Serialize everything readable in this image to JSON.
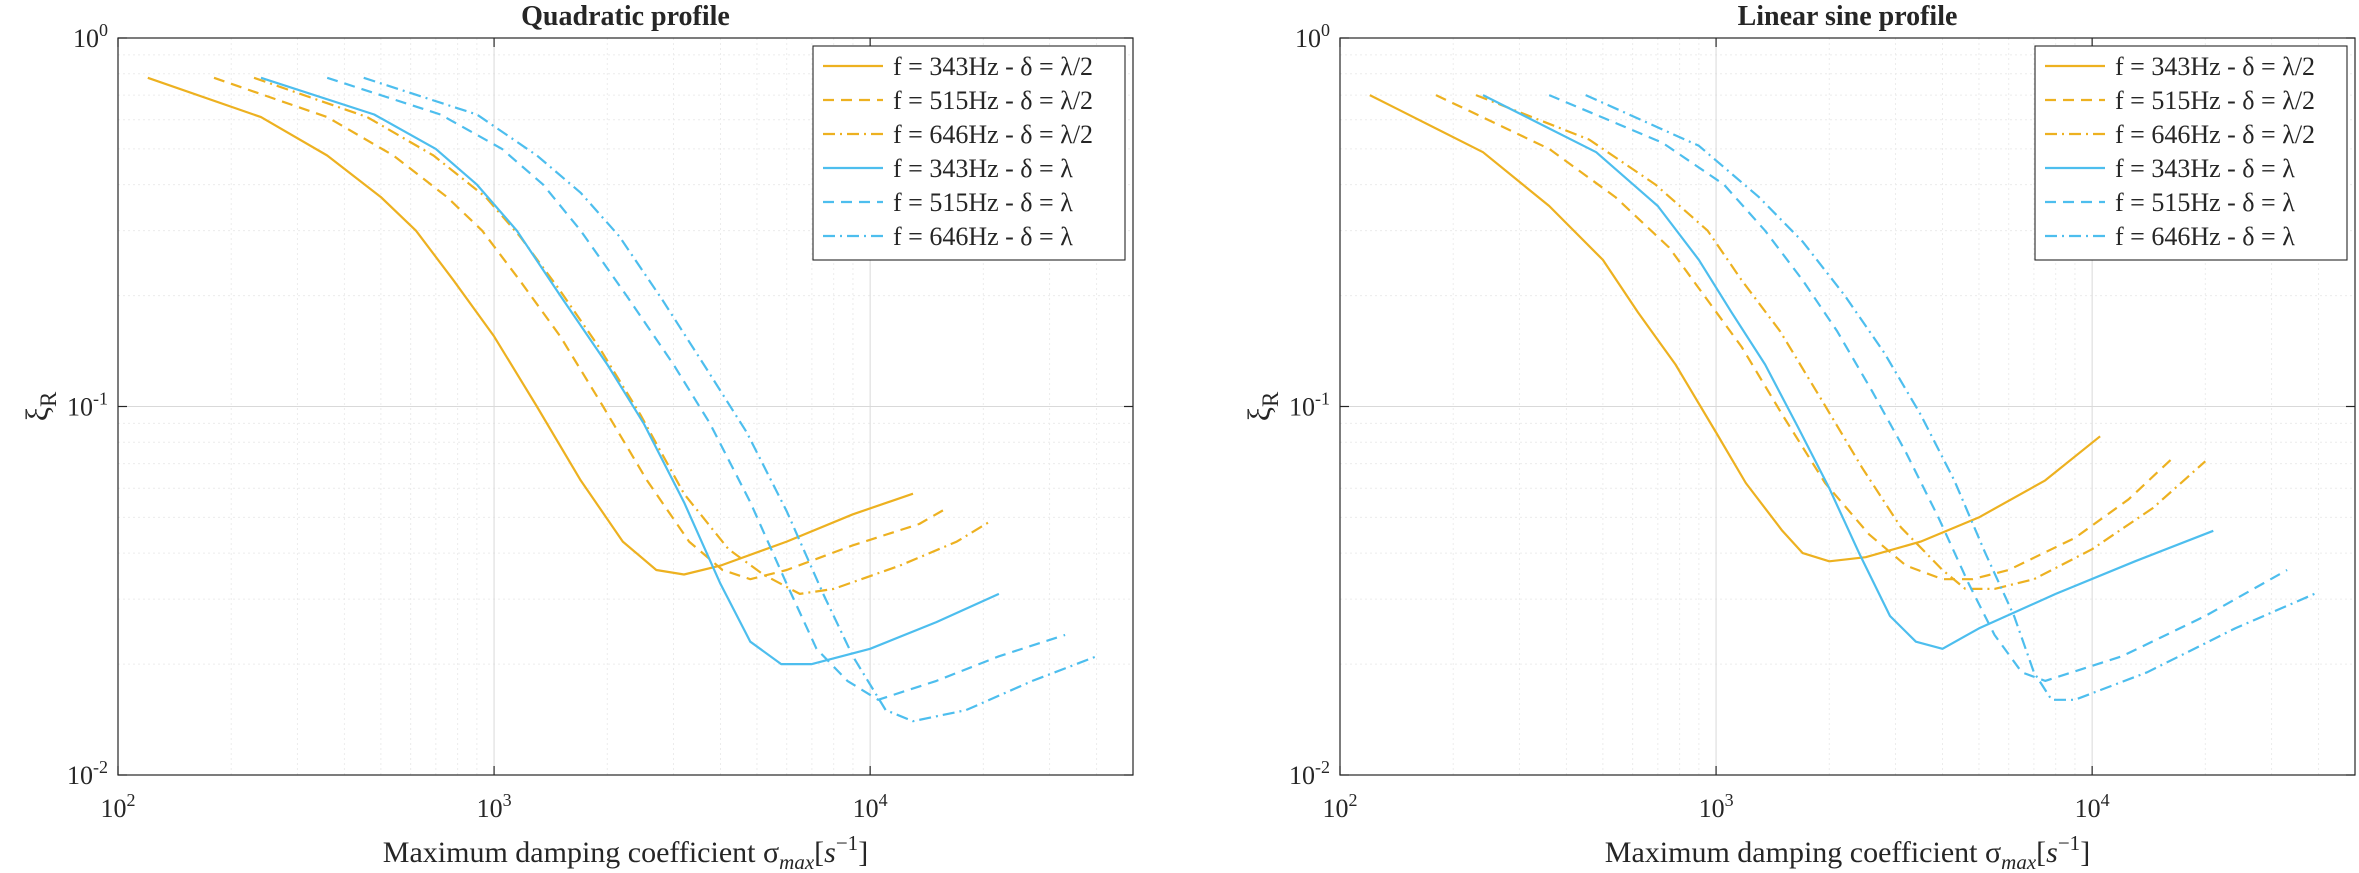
{
  "colors": {
    "yellow": "#EDB120",
    "blue": "#4DBEEE",
    "grid": "#d9d9d9",
    "axis": "#262626"
  },
  "chart_data": [
    {
      "type": "line",
      "title": "Quadratic profile",
      "xlabel": "Maximum damping coefficient σ",
      "xlabel_sub": "max",
      "xlabel_unit_open": "[",
      "xlabel_unit_base": "s",
      "xlabel_unit_exp": "−1",
      "xlabel_unit_close": "]",
      "ylabel": "ξ",
      "ylabel_sub": "R",
      "xscale": "log",
      "yscale": "log",
      "xlim": [
        100,
        50000
      ],
      "ylim": [
        0.01,
        1
      ],
      "grid": true,
      "minor_grid": true,
      "legend_position": "top-right",
      "x_ticks": [
        {
          "value": 100,
          "base": "10",
          "exp": "2"
        },
        {
          "value": 1000,
          "base": "10",
          "exp": "3"
        },
        {
          "value": 10000,
          "base": "10",
          "exp": "4"
        }
      ],
      "y_ticks": [
        {
          "value": 0.01,
          "base": "10",
          "exp": "-2"
        },
        {
          "value": 0.1,
          "base": "10",
          "exp": "-1"
        },
        {
          "value": 1,
          "base": "10",
          "exp": "0"
        }
      ],
      "series": [
        {
          "name": "f = 343Hz - δ = λ/2",
          "color": "yellow",
          "dash": "solid",
          "points": [
            [
              120,
              0.78
            ],
            [
              240,
              0.61
            ],
            [
              360,
              0.48
            ],
            [
              500,
              0.37
            ],
            [
              620,
              0.3
            ],
            [
              780,
              0.22
            ],
            [
              1000,
              0.155
            ],
            [
              1300,
              0.1
            ],
            [
              1700,
              0.063
            ],
            [
              2200,
              0.043
            ],
            [
              2700,
              0.036
            ],
            [
              3200,
              0.035
            ],
            [
              4000,
              0.037
            ],
            [
              6000,
              0.043
            ],
            [
              9000,
              0.051
            ],
            [
              13000,
              0.058
            ]
          ]
        },
        {
          "name": "f = 515Hz - δ = λ/2",
          "color": "yellow",
          "dash": "dashed",
          "points": [
            [
              180,
              0.78
            ],
            [
              360,
              0.61
            ],
            [
              540,
              0.48
            ],
            [
              750,
              0.37
            ],
            [
              930,
              0.3
            ],
            [
              1170,
              0.22
            ],
            [
              1500,
              0.155
            ],
            [
              1950,
              0.1
            ],
            [
              2550,
              0.063
            ],
            [
              3300,
              0.043
            ],
            [
              4050,
              0.036
            ],
            [
              4800,
              0.034
            ],
            [
              6000,
              0.036
            ],
            [
              9000,
              0.042
            ],
            [
              13500,
              0.048
            ],
            [
              16000,
              0.053
            ]
          ]
        },
        {
          "name": "f = 646Hz - δ = λ/2",
          "color": "yellow",
          "dash": "dashdot",
          "points": [
            [
              230,
              0.78
            ],
            [
              460,
              0.61
            ],
            [
              690,
              0.48
            ],
            [
              950,
              0.37
            ],
            [
              1170,
              0.29
            ],
            [
              1480,
              0.21
            ],
            [
              1900,
              0.145
            ],
            [
              2450,
              0.095
            ],
            [
              3200,
              0.058
            ],
            [
              4200,
              0.041
            ],
            [
              5200,
              0.035
            ],
            [
              6500,
              0.031
            ],
            [
              8000,
              0.032
            ],
            [
              12000,
              0.037
            ],
            [
              17000,
              0.043
            ],
            [
              21000,
              0.049
            ]
          ]
        },
        {
          "name": "f = 343Hz - δ = λ",
          "color": "blue",
          "dash": "solid",
          "points": [
            [
              240,
              0.78
            ],
            [
              480,
              0.62
            ],
            [
              700,
              0.5
            ],
            [
              900,
              0.4
            ],
            [
              1150,
              0.3
            ],
            [
              1500,
              0.2
            ],
            [
              2000,
              0.13
            ],
            [
              2500,
              0.09
            ],
            [
              3200,
              0.055
            ],
            [
              4000,
              0.033
            ],
            [
              4800,
              0.023
            ],
            [
              5800,
              0.02
            ],
            [
              7000,
              0.02
            ],
            [
              10000,
              0.022
            ],
            [
              15000,
              0.026
            ],
            [
              22000,
              0.031
            ]
          ]
        },
        {
          "name": "f = 515Hz - δ = λ",
          "color": "blue",
          "dash": "dashed",
          "points": [
            [
              360,
              0.78
            ],
            [
              720,
              0.62
            ],
            [
              1050,
              0.5
            ],
            [
              1350,
              0.4
            ],
            [
              1700,
              0.3
            ],
            [
              2250,
              0.2
            ],
            [
              3000,
              0.13
            ],
            [
              3750,
              0.09
            ],
            [
              4800,
              0.055
            ],
            [
              6000,
              0.033
            ],
            [
              7200,
              0.022
            ],
            [
              8700,
              0.018
            ],
            [
              10500,
              0.016
            ],
            [
              15000,
              0.018
            ],
            [
              22000,
              0.021
            ],
            [
              33000,
              0.024
            ]
          ]
        },
        {
          "name": "f = 646Hz - δ = λ",
          "color": "blue",
          "dash": "dashdot",
          "points": [
            [
              450,
              0.78
            ],
            [
              900,
              0.62
            ],
            [
              1300,
              0.48
            ],
            [
              1700,
              0.38
            ],
            [
              2150,
              0.29
            ],
            [
              2800,
              0.195
            ],
            [
              3700,
              0.125
            ],
            [
              4700,
              0.085
            ],
            [
              6000,
              0.052
            ],
            [
              7500,
              0.031
            ],
            [
              9000,
              0.021
            ],
            [
              11000,
              0.015
            ],
            [
              13000,
              0.014
            ],
            [
              18000,
              0.015
            ],
            [
              27000,
              0.018
            ],
            [
              40000,
              0.021
            ]
          ]
        }
      ]
    },
    {
      "type": "line",
      "title": "Linear sine profile",
      "xlabel": "Maximum damping coefficient σ",
      "xlabel_sub": "max",
      "xlabel_unit_open": "[",
      "xlabel_unit_base": "s",
      "xlabel_unit_exp": "−1",
      "xlabel_unit_close": "]",
      "ylabel": "ξ",
      "ylabel_sub": "R",
      "xscale": "log",
      "yscale": "log",
      "xlim": [
        100,
        50000
      ],
      "ylim": [
        0.01,
        1
      ],
      "grid": true,
      "minor_grid": true,
      "legend_position": "top-right",
      "x_ticks": [
        {
          "value": 100,
          "base": "10",
          "exp": "2"
        },
        {
          "value": 1000,
          "base": "10",
          "exp": "3"
        },
        {
          "value": 10000,
          "base": "10",
          "exp": "4"
        }
      ],
      "y_ticks": [
        {
          "value": 0.01,
          "base": "10",
          "exp": "-2"
        },
        {
          "value": 0.1,
          "base": "10",
          "exp": "-1"
        },
        {
          "value": 1,
          "base": "10",
          "exp": "0"
        }
      ],
      "series": [
        {
          "name": "f = 343Hz - δ = λ/2",
          "color": "yellow",
          "dash": "solid",
          "points": [
            [
              120,
              0.7
            ],
            [
              240,
              0.49
            ],
            [
              360,
              0.35
            ],
            [
              500,
              0.25
            ],
            [
              620,
              0.18
            ],
            [
              780,
              0.13
            ],
            [
              1000,
              0.085
            ],
            [
              1200,
              0.062
            ],
            [
              1500,
              0.046
            ],
            [
              1700,
              0.04
            ],
            [
              2000,
              0.038
            ],
            [
              2500,
              0.039
            ],
            [
              3500,
              0.043
            ],
            [
              5000,
              0.05
            ],
            [
              7500,
              0.063
            ],
            [
              10500,
              0.083
            ]
          ]
        },
        {
          "name": "f = 515Hz - δ = λ/2",
          "color": "yellow",
          "dash": "dashed",
          "points": [
            [
              180,
              0.7
            ],
            [
              360,
              0.5
            ],
            [
              540,
              0.37
            ],
            [
              750,
              0.27
            ],
            [
              930,
              0.2
            ],
            [
              1170,
              0.145
            ],
            [
              1500,
              0.095
            ],
            [
              1950,
              0.062
            ],
            [
              2550,
              0.045
            ],
            [
              3200,
              0.037
            ],
            [
              4000,
              0.034
            ],
            [
              4800,
              0.034
            ],
            [
              6000,
              0.036
            ],
            [
              9000,
              0.044
            ],
            [
              12500,
              0.056
            ],
            [
              16500,
              0.073
            ]
          ]
        },
        {
          "name": "f = 646Hz - δ = λ/2",
          "color": "yellow",
          "dash": "dashdot",
          "points": [
            [
              230,
              0.7
            ],
            [
              460,
              0.53
            ],
            [
              690,
              0.4
            ],
            [
              950,
              0.3
            ],
            [
              1170,
              0.22
            ],
            [
              1480,
              0.16
            ],
            [
              1900,
              0.105
            ],
            [
              2450,
              0.068
            ],
            [
              3100,
              0.047
            ],
            [
              4000,
              0.036
            ],
            [
              4600,
              0.032
            ],
            [
              5500,
              0.032
            ],
            [
              7000,
              0.034
            ],
            [
              10000,
              0.041
            ],
            [
              14500,
              0.053
            ],
            [
              20000,
              0.071
            ]
          ]
        },
        {
          "name": "f = 343Hz - δ = λ",
          "color": "blue",
          "dash": "solid",
          "points": [
            [
              240,
              0.7
            ],
            [
              480,
              0.49
            ],
            [
              700,
              0.35
            ],
            [
              900,
              0.25
            ],
            [
              1100,
              0.18
            ],
            [
              1350,
              0.13
            ],
            [
              1650,
              0.088
            ],
            [
              2000,
              0.06
            ],
            [
              2400,
              0.04
            ],
            [
              2900,
              0.027
            ],
            [
              3400,
              0.023
            ],
            [
              4000,
              0.022
            ],
            [
              5000,
              0.025
            ],
            [
              8000,
              0.031
            ],
            [
              13000,
              0.038
            ],
            [
              21000,
              0.046
            ]
          ]
        },
        {
          "name": "f = 515Hz - δ = λ",
          "color": "blue",
          "dash": "dashed",
          "points": [
            [
              360,
              0.7
            ],
            [
              720,
              0.52
            ],
            [
              1050,
              0.4
            ],
            [
              1350,
              0.3
            ],
            [
              1700,
              0.22
            ],
            [
              2100,
              0.16
            ],
            [
              2600,
              0.11
            ],
            [
              3200,
              0.075
            ],
            [
              3900,
              0.05
            ],
            [
              4700,
              0.033
            ],
            [
              5500,
              0.024
            ],
            [
              6500,
              0.019
            ],
            [
              7500,
              0.018
            ],
            [
              12000,
              0.021
            ],
            [
              20000,
              0.027
            ],
            [
              33000,
              0.036
            ]
          ]
        },
        {
          "name": "f = 646Hz - δ = λ",
          "color": "blue",
          "dash": "dashdot",
          "points": [
            [
              450,
              0.7
            ],
            [
              900,
              0.51
            ],
            [
              1300,
              0.37
            ],
            [
              1700,
              0.28
            ],
            [
              2200,
              0.2
            ],
            [
              2800,
              0.14
            ],
            [
              3500,
              0.095
            ],
            [
              4300,
              0.063
            ],
            [
              5200,
              0.04
            ],
            [
              6200,
              0.027
            ],
            [
              7000,
              0.019
            ],
            [
              7800,
              0.016
            ],
            [
              9000,
              0.016
            ],
            [
              14000,
              0.019
            ],
            [
              24000,
              0.025
            ],
            [
              39000,
              0.031
            ]
          ]
        }
      ]
    }
  ]
}
